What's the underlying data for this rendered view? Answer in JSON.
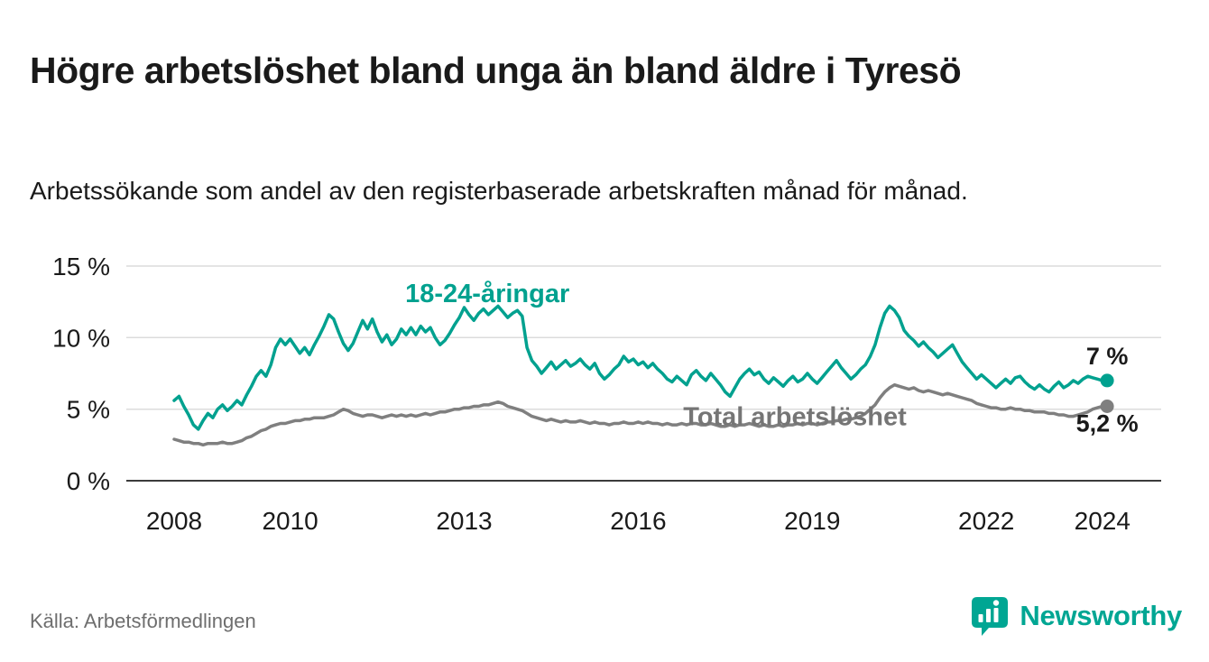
{
  "title": "Högre arbetslöshet bland unga än bland äldre i Tyresö",
  "subtitle": "Arbetssökande som andel av den registerbaserade arbetskraften månad för månad.",
  "source": "Källa: Arbetsförmedlingen",
  "logo": {
    "text": "Newsworthy",
    "icon": "bar-chart-bubble-icon",
    "color": "#00a693"
  },
  "colors": {
    "youth_line": "#00a18f",
    "total_line": "#7f7f7f",
    "gridline": "#dcdcdc",
    "axis_line": "#3b3b3b",
    "text": "#1a1a1a",
    "muted_text": "#6e6e6e"
  },
  "chart_data": {
    "type": "line",
    "title": "Högre arbetslöshet bland unga än bland äldre i Tyresö",
    "xlabel": "",
    "ylabel": "",
    "unit": "%",
    "grid": "horizontal",
    "legend_position": "inline-annotations",
    "xlim": [
      2007.2,
      2025.0
    ],
    "ylim": [
      0,
      15
    ],
    "x_ticks": [
      2008,
      2010,
      2013,
      2016,
      2019,
      2022,
      2024
    ],
    "x_tick_labels": [
      "2008",
      "2010",
      "2013",
      "2016",
      "2019",
      "2022",
      "2024"
    ],
    "y_ticks": [
      0,
      5,
      10,
      15
    ],
    "y_tick_labels": [
      "0 %",
      "5 %",
      "10 %",
      "15 %"
    ],
    "annotations": [
      {
        "id": "youth-series",
        "text": "18-24-åringar",
        "x": 2013.4,
        "y": 13.1,
        "color": "#00a18f"
      },
      {
        "id": "total-series",
        "text": "Total arbetslöshet",
        "x": 2018.7,
        "y": 4.5,
        "color": "#757575"
      }
    ],
    "series": [
      {
        "id": "youth",
        "name": "18-24-åringar",
        "color": "#00a18f",
        "x_start": 2008.0,
        "x_step": 0.08333,
        "end_label": "7 %",
        "end_value": 7.0,
        "end_label_position": "above",
        "values": [
          5.6,
          5.9,
          5.2,
          4.6,
          3.9,
          3.6,
          4.2,
          4.7,
          4.4,
          5.0,
          5.3,
          4.9,
          5.2,
          5.6,
          5.3,
          6.0,
          6.6,
          7.3,
          7.7,
          7.3,
          8.1,
          9.3,
          9.9,
          9.5,
          9.9,
          9.4,
          8.9,
          9.3,
          8.8,
          9.5,
          10.1,
          10.8,
          11.6,
          11.3,
          10.4,
          9.6,
          9.1,
          9.6,
          10.4,
          11.2,
          10.6,
          11.3,
          10.4,
          9.7,
          10.2,
          9.5,
          9.9,
          10.6,
          10.2,
          10.7,
          10.2,
          10.8,
          10.4,
          10.7,
          10.0,
          9.5,
          9.8,
          10.3,
          10.9,
          11.4,
          12.1,
          11.6,
          11.2,
          11.7,
          12.0,
          11.6,
          11.9,
          12.2,
          11.8,
          11.4,
          11.7,
          11.9,
          11.5,
          9.3,
          8.4,
          8.0,
          7.5,
          7.9,
          8.3,
          7.8,
          8.1,
          8.4,
          8.0,
          8.2,
          8.5,
          8.1,
          7.8,
          8.2,
          7.5,
          7.1,
          7.4,
          7.8,
          8.1,
          8.7,
          8.3,
          8.5,
          8.1,
          8.3,
          7.9,
          8.2,
          7.8,
          7.5,
          7.1,
          6.9,
          7.3,
          7.0,
          6.7,
          7.4,
          7.7,
          7.3,
          7.0,
          7.5,
          7.1,
          6.7,
          6.2,
          5.9,
          6.5,
          7.1,
          7.5,
          7.8,
          7.4,
          7.6,
          7.1,
          6.8,
          7.2,
          6.9,
          6.6,
          7.0,
          7.3,
          6.9,
          7.1,
          7.5,
          7.1,
          6.8,
          7.2,
          7.6,
          8.0,
          8.4,
          7.9,
          7.5,
          7.1,
          7.4,
          7.8,
          8.1,
          8.7,
          9.5,
          10.7,
          11.7,
          12.2,
          11.9,
          11.4,
          10.5,
          10.1,
          9.8,
          9.4,
          9.7,
          9.3,
          9.0,
          8.6,
          8.9,
          9.2,
          9.5,
          8.9,
          8.3,
          7.9,
          7.5,
          7.1,
          7.4,
          7.1,
          6.8,
          6.5,
          6.8,
          7.1,
          6.8,
          7.2,
          7.3,
          6.9,
          6.6,
          6.4,
          6.7,
          6.4,
          6.2,
          6.6,
          6.9,
          6.5,
          6.7,
          7.0,
          6.8,
          7.1,
          7.3,
          7.2,
          7.1,
          7.0,
          7.0
        ]
      },
      {
        "id": "total",
        "name": "Total arbetslöshet",
        "color": "#7f7f7f",
        "x_start": 2008.0,
        "x_step": 0.08333,
        "end_label": "5,2 %",
        "end_value": 5.2,
        "end_label_position": "below",
        "values": [
          2.9,
          2.8,
          2.7,
          2.7,
          2.6,
          2.6,
          2.5,
          2.6,
          2.6,
          2.6,
          2.7,
          2.6,
          2.6,
          2.7,
          2.8,
          3.0,
          3.1,
          3.3,
          3.5,
          3.6,
          3.8,
          3.9,
          4.0,
          4.0,
          4.1,
          4.2,
          4.2,
          4.3,
          4.3,
          4.4,
          4.4,
          4.4,
          4.5,
          4.6,
          4.8,
          5.0,
          4.9,
          4.7,
          4.6,
          4.5,
          4.6,
          4.6,
          4.5,
          4.4,
          4.5,
          4.6,
          4.5,
          4.6,
          4.5,
          4.6,
          4.5,
          4.6,
          4.7,
          4.6,
          4.7,
          4.8,
          4.8,
          4.9,
          5.0,
          5.0,
          5.1,
          5.1,
          5.2,
          5.2,
          5.3,
          5.3,
          5.4,
          5.5,
          5.4,
          5.2,
          5.1,
          5.0,
          4.9,
          4.7,
          4.5,
          4.4,
          4.3,
          4.2,
          4.3,
          4.2,
          4.1,
          4.2,
          4.1,
          4.1,
          4.2,
          4.1,
          4.0,
          4.1,
          4.0,
          4.0,
          3.9,
          4.0,
          4.0,
          4.1,
          4.0,
          4.0,
          4.1,
          4.0,
          4.1,
          4.0,
          4.0,
          3.9,
          4.0,
          3.9,
          3.9,
          4.0,
          3.9,
          4.0,
          4.0,
          3.9,
          3.9,
          4.0,
          3.9,
          3.8,
          3.8,
          3.9,
          3.8,
          3.9,
          3.9,
          4.0,
          3.9,
          3.8,
          3.9,
          3.8,
          3.8,
          3.9,
          3.8,
          3.9,
          3.9,
          4.0,
          3.9,
          4.0,
          4.0,
          3.9,
          4.0,
          4.1,
          4.1,
          4.2,
          4.2,
          4.3,
          4.3,
          4.4,
          4.5,
          4.7,
          5.0,
          5.3,
          5.8,
          6.2,
          6.5,
          6.7,
          6.6,
          6.5,
          6.4,
          6.5,
          6.3,
          6.2,
          6.3,
          6.2,
          6.1,
          6.0,
          6.1,
          6.0,
          5.9,
          5.8,
          5.7,
          5.6,
          5.4,
          5.3,
          5.2,
          5.1,
          5.1,
          5.0,
          5.0,
          5.1,
          5.0,
          5.0,
          4.9,
          4.9,
          4.8,
          4.8,
          4.8,
          4.7,
          4.7,
          4.6,
          4.6,
          4.5,
          4.5,
          4.6,
          4.7,
          4.8,
          5.0,
          5.1,
          5.2,
          5.2
        ]
      }
    ]
  }
}
